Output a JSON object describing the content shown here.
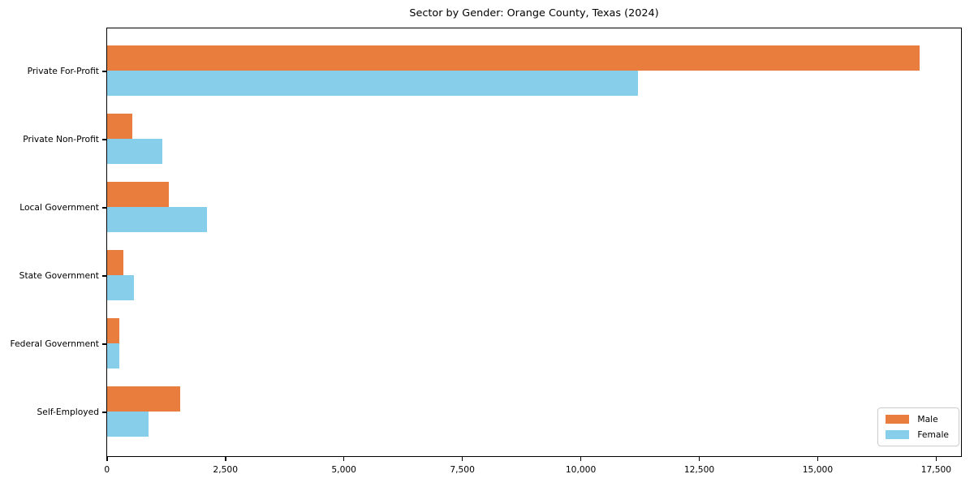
{
  "chart_data": {
    "type": "bar",
    "orientation": "horizontal",
    "title": "Sector by Gender: Orange County, Texas (2024)",
    "xlabel": "",
    "ylabel": "",
    "categories": [
      "Private For-Profit",
      "Private Non-Profit",
      "Local Government",
      "State Government",
      "Federal Government",
      "Self-Employed"
    ],
    "series": [
      {
        "name": "Male",
        "color": "#e97d3d",
        "values": [
          17150,
          530,
          1310,
          350,
          260,
          1540
        ]
      },
      {
        "name": "Female",
        "color": "#87ceeb",
        "values": [
          11200,
          1170,
          2110,
          560,
          250,
          880
        ]
      }
    ],
    "xlim": [
      0,
      18000
    ],
    "x_tick_values": [
      0,
      2500,
      5000,
      7500,
      10000,
      12500,
      15000,
      17500
    ],
    "x_tick_labels": [
      "0",
      "2,500",
      "5,000",
      "7,500",
      "10,000",
      "12,500",
      "15,000",
      "17,500"
    ],
    "grid": false,
    "legend_position": "lower right",
    "legend_labels": [
      "Male",
      "Female"
    ]
  }
}
